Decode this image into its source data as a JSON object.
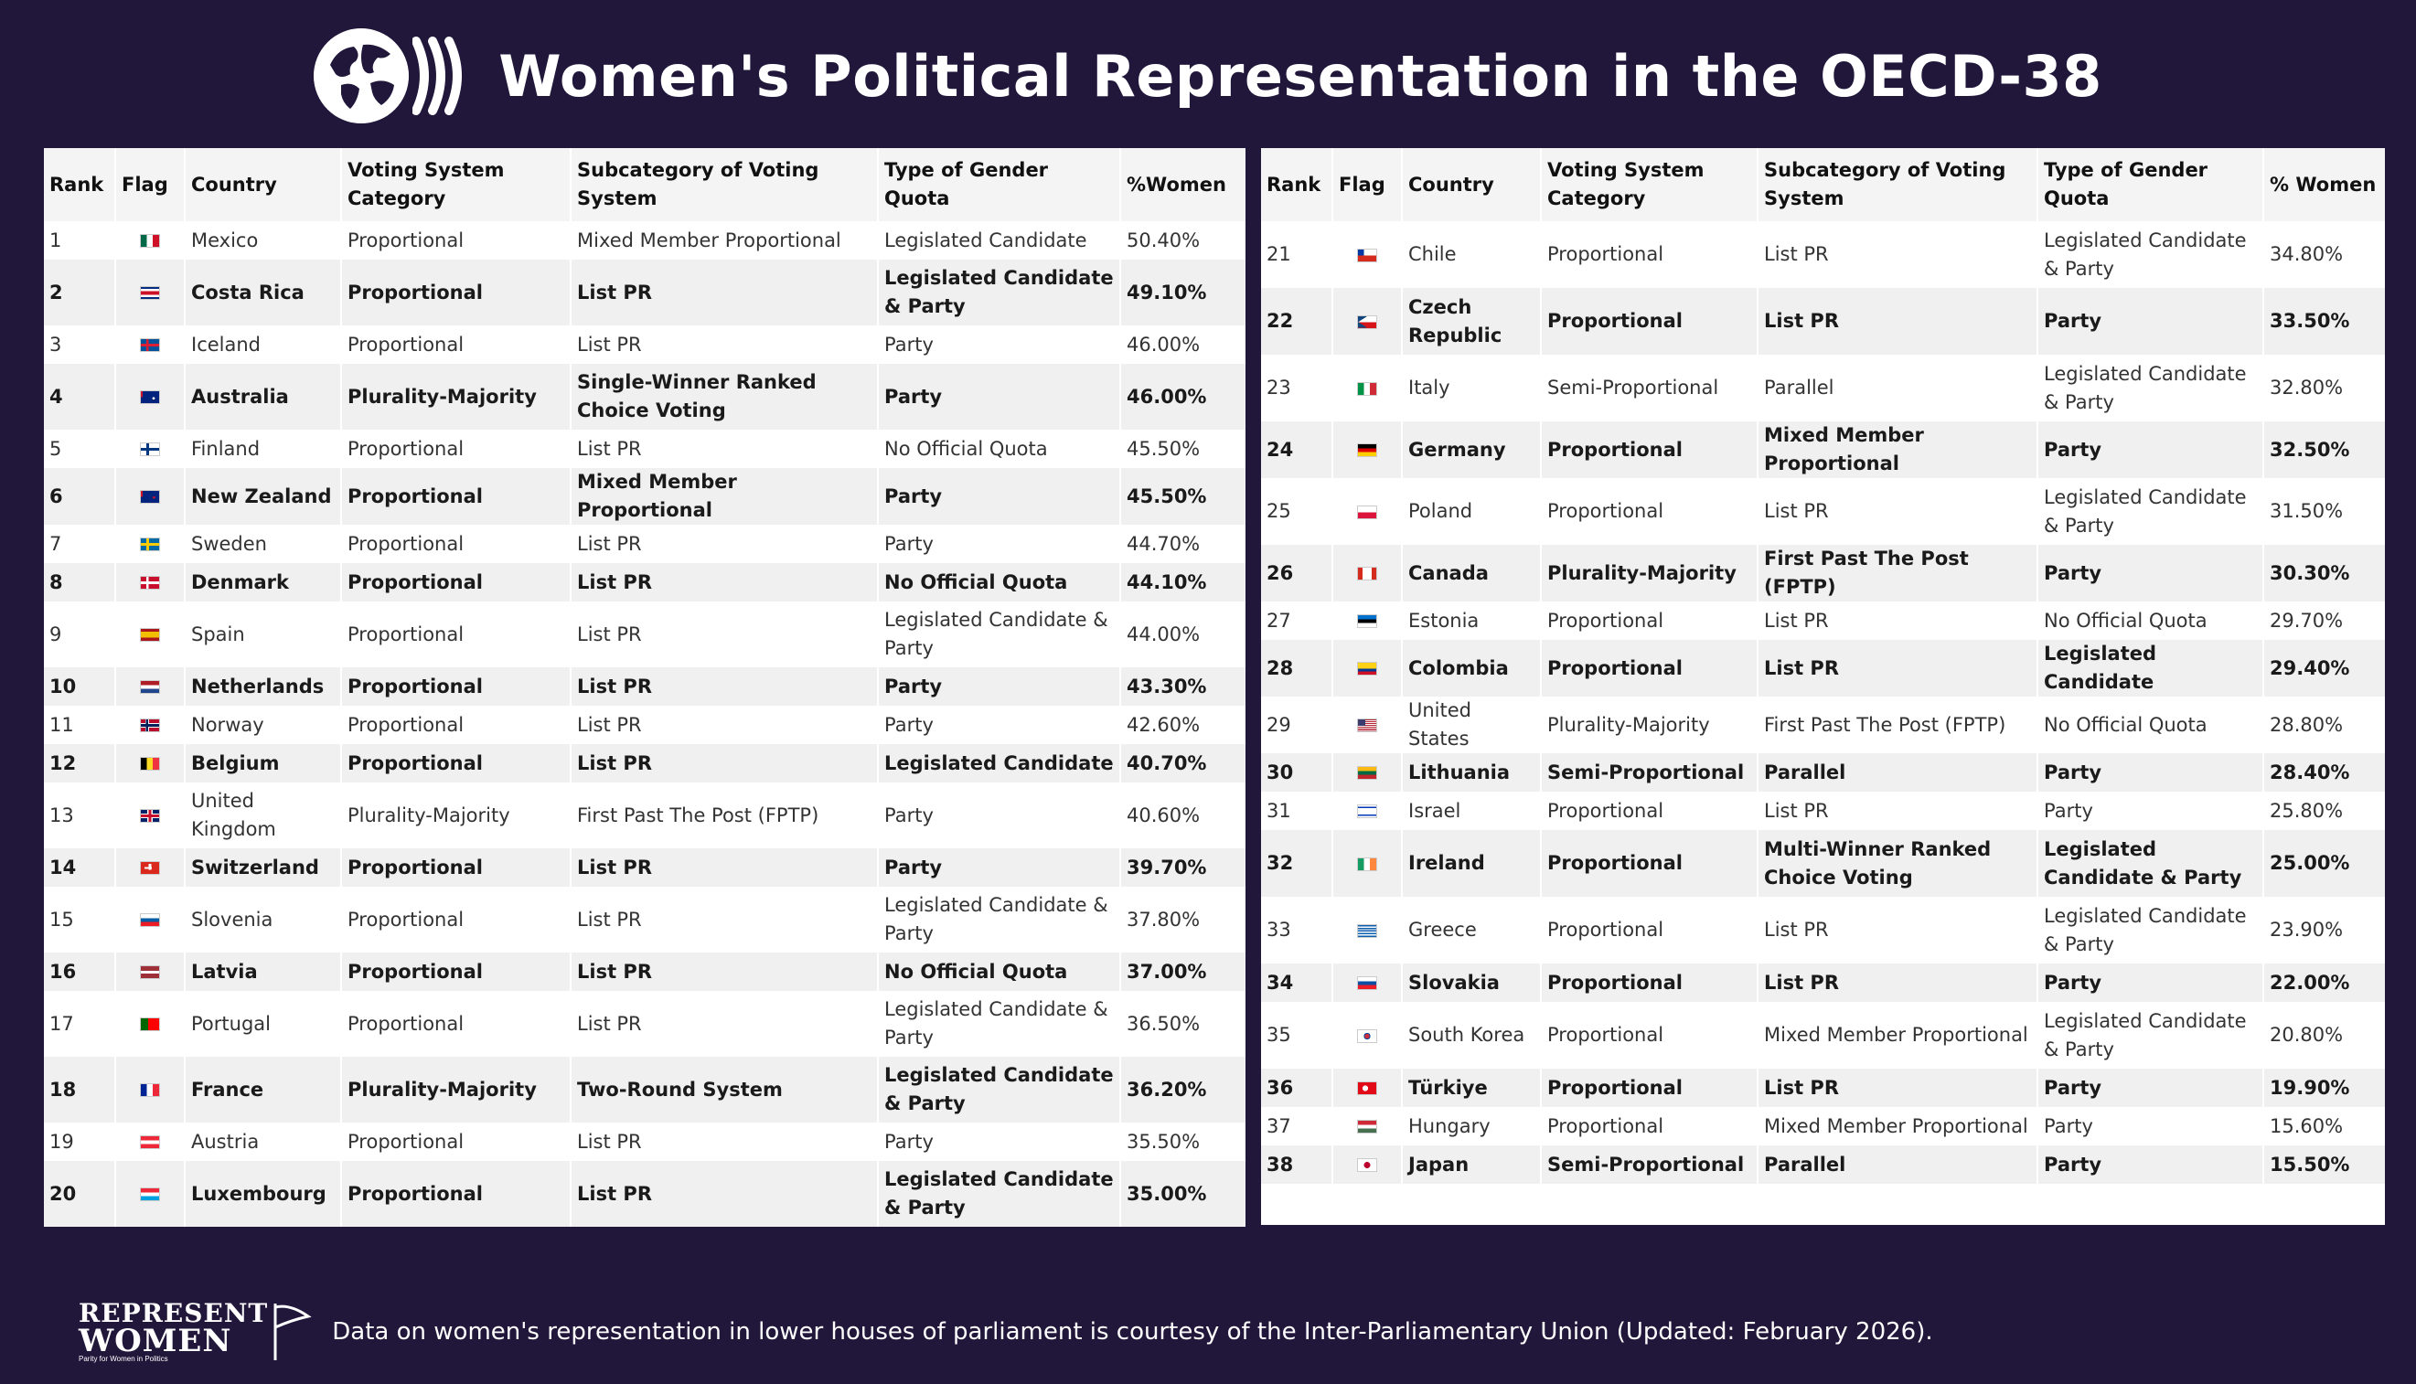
{
  "title": "Women's Political Representation in the OECD-38",
  "headers": {
    "left": [
      "Rank",
      "Flag",
      "Country",
      "Voting System Category",
      "Subcategory of Voting System",
      "Type of Gender Quota",
      "%Women"
    ],
    "right": [
      "Rank",
      "Flag",
      "Country",
      "Voting System Category",
      "Subcategory of Voting System",
      "Type of Gender Quota",
      "% Women"
    ]
  },
  "rows": [
    {
      "rank": "1",
      "flag": "mexico-flag-icon",
      "country": "Mexico",
      "category": "Proportional",
      "subcategory": "Mixed Member Proportional",
      "quota": "Legislated Candidate",
      "women": "50.40%"
    },
    {
      "rank": "2",
      "flag": "costa-rica-flag-icon",
      "country": "Costa Rica",
      "category": "Proportional",
      "subcategory": "List PR",
      "quota": "Legislated Candidate & Party",
      "women": "49.10%"
    },
    {
      "rank": "3",
      "flag": "iceland-flag-icon",
      "country": "Iceland",
      "category": "Proportional",
      "subcategory": "List PR",
      "quota": "Party",
      "women": "46.00%"
    },
    {
      "rank": "4",
      "flag": "australia-flag-icon",
      "country": "Australia",
      "category": "Plurality-Majority",
      "subcategory": "Single-Winner Ranked Choice Voting",
      "quota": "Party",
      "women": "46.00%"
    },
    {
      "rank": "5",
      "flag": "finland-flag-icon",
      "country": "Finland",
      "category": "Proportional",
      "subcategory": "List PR",
      "quota": "No Official Quota",
      "women": "45.50%"
    },
    {
      "rank": "6",
      "flag": "new-zealand-flag-icon",
      "country": "New Zealand",
      "category": "Proportional",
      "subcategory": "Mixed Member Proportional",
      "quota": "Party",
      "women": "45.50%"
    },
    {
      "rank": "7",
      "flag": "sweden-flag-icon",
      "country": "Sweden",
      "category": "Proportional",
      "subcategory": "List PR",
      "quota": "Party",
      "women": "44.70%"
    },
    {
      "rank": "8",
      "flag": "denmark-flag-icon",
      "country": "Denmark",
      "category": "Proportional",
      "subcategory": "List PR",
      "quota": "No Official Quota",
      "women": "44.10%"
    },
    {
      "rank": "9",
      "flag": "spain-flag-icon",
      "country": "Spain",
      "category": "Proportional",
      "subcategory": "List PR",
      "quota": "Legislated Candidate & Party",
      "women": "44.00%"
    },
    {
      "rank": "10",
      "flag": "netherlands-flag-icon",
      "country": "Netherlands",
      "category": "Proportional",
      "subcategory": "List PR",
      "quota": "Party",
      "women": "43.30%"
    },
    {
      "rank": "11",
      "flag": "norway-flag-icon",
      "country": "Norway",
      "category": "Proportional",
      "subcategory": "List PR",
      "quota": "Party",
      "women": "42.60%"
    },
    {
      "rank": "12",
      "flag": "belgium-flag-icon",
      "country": "Belgium",
      "category": "Proportional",
      "subcategory": "List PR",
      "quota": "Legislated Candidate",
      "women": "40.70%"
    },
    {
      "rank": "13",
      "flag": "united-kingdom-flag-icon",
      "country": "United Kingdom",
      "category": "Plurality-Majority",
      "subcategory": "First Past The Post (FPTP)",
      "quota": "Party",
      "women": "40.60%"
    },
    {
      "rank": "14",
      "flag": "switzerland-flag-icon",
      "country": "Switzerland",
      "category": "Proportional",
      "subcategory": "List PR",
      "quota": "Party",
      "women": "39.70%"
    },
    {
      "rank": "15",
      "flag": "slovenia-flag-icon",
      "country": "Slovenia",
      "category": "Proportional",
      "subcategory": "List PR",
      "quota": "Legislated Candidate & Party",
      "women": "37.80%"
    },
    {
      "rank": "16",
      "flag": "latvia-flag-icon",
      "country": "Latvia",
      "category": "Proportional",
      "subcategory": "List PR",
      "quota": "No Official Quota",
      "women": "37.00%"
    },
    {
      "rank": "17",
      "flag": "portugal-flag-icon",
      "country": "Portugal",
      "category": "Proportional",
      "subcategory": "List PR",
      "quota": "Legislated Candidate & Party",
      "women": "36.50%"
    },
    {
      "rank": "18",
      "flag": "france-flag-icon",
      "country": "France",
      "category": "Plurality-Majority",
      "subcategory": "Two-Round System",
      "quota": "Legislated Candidate & Party",
      "women": "36.20%"
    },
    {
      "rank": "19",
      "flag": "austria-flag-icon",
      "country": "Austria",
      "category": "Proportional",
      "subcategory": "List PR",
      "quota": "Party",
      "women": "35.50%"
    },
    {
      "rank": "20",
      "flag": "luxembourg-flag-icon",
      "country": "Luxembourg",
      "category": "Proportional",
      "subcategory": "List PR",
      "quota": "Legislated Candidate & Party",
      "women": "35.00%"
    },
    {
      "rank": "21",
      "flag": "chile-flag-icon",
      "country": "Chile",
      "category": "Proportional",
      "subcategory": "List PR",
      "quota": "Legislated Candidate & Party",
      "women": "34.80%"
    },
    {
      "rank": "22",
      "flag": "czech-republic-flag-icon",
      "country": "Czech Republic",
      "category": "Proportional",
      "subcategory": "List PR",
      "quota": "Party",
      "women": "33.50%"
    },
    {
      "rank": "23",
      "flag": "italy-flag-icon",
      "country": "Italy",
      "category": "Semi-Proportional",
      "subcategory": "Parallel",
      "quota": "Legislated Candidate & Party",
      "women": "32.80%"
    },
    {
      "rank": "24",
      "flag": "germany-flag-icon",
      "country": "Germany",
      "category": "Proportional",
      "subcategory": "Mixed Member Proportional",
      "quota": "Party",
      "women": "32.50%"
    },
    {
      "rank": "25",
      "flag": "poland-flag-icon",
      "country": "Poland",
      "category": "Proportional",
      "subcategory": "List PR",
      "quota": "Legislated Candidate & Party",
      "women": "31.50%"
    },
    {
      "rank": "26",
      "flag": "canada-flag-icon",
      "country": "Canada",
      "category": "Plurality-Majority",
      "subcategory": "First Past The Post (FPTP)",
      "quota": "Party",
      "women": "30.30%"
    },
    {
      "rank": "27",
      "flag": "estonia-flag-icon",
      "country": "Estonia",
      "category": "Proportional",
      "subcategory": "List PR",
      "quota": "No Official Quota",
      "women": "29.70%"
    },
    {
      "rank": "28",
      "flag": "colombia-flag-icon",
      "country": "Colombia",
      "category": "Proportional",
      "subcategory": "List PR",
      "quota": "Legislated Candidate",
      "women": "29.40%"
    },
    {
      "rank": "29",
      "flag": "united-states-flag-icon",
      "country": "United States",
      "category": "Plurality-Majority",
      "subcategory": "First Past The Post (FPTP)",
      "quota": "No Official Quota",
      "women": "28.80%"
    },
    {
      "rank": "30",
      "flag": "lithuania-flag-icon",
      "country": "Lithuania",
      "category": "Semi-Proportional",
      "subcategory": "Parallel",
      "quota": "Party",
      "women": "28.40%"
    },
    {
      "rank": "31",
      "flag": "israel-flag-icon",
      "country": "Israel",
      "category": "Proportional",
      "subcategory": "List PR",
      "quota": "Party",
      "women": "25.80%"
    },
    {
      "rank": "32",
      "flag": "ireland-flag-icon",
      "country": "Ireland",
      "category": "Proportional",
      "subcategory": "Multi-Winner Ranked Choice Voting",
      "quota": "Legislated Candidate & Party",
      "women": "25.00%"
    },
    {
      "rank": "33",
      "flag": "greece-flag-icon",
      "country": "Greece",
      "category": "Proportional",
      "subcategory": "List PR",
      "quota": "Legislated Candidate & Party",
      "women": "23.90%"
    },
    {
      "rank": "34",
      "flag": "slovakia-flag-icon",
      "country": "Slovakia",
      "category": "Proportional",
      "subcategory": "List PR",
      "quota": "Party",
      "women": "22.00%"
    },
    {
      "rank": "35",
      "flag": "south-korea-flag-icon",
      "country": "South Korea",
      "category": "Proportional",
      "subcategory": "Mixed Member Proportional",
      "quota": "Legislated Candidate & Party",
      "women": "20.80%"
    },
    {
      "rank": "36",
      "flag": "turkiye-flag-icon",
      "country": "Türkiye",
      "category": "Proportional",
      "subcategory": "List PR",
      "quota": "Party",
      "women": "19.90%"
    },
    {
      "rank": "37",
      "flag": "hungary-flag-icon",
      "country": "Hungary",
      "category": "Proportional",
      "subcategory": "Mixed Member Proportional",
      "quota": "Party",
      "women": "15.60%"
    },
    {
      "rank": "38",
      "flag": "japan-flag-icon",
      "country": "Japan",
      "category": "Semi-Proportional",
      "subcategory": "Parallel",
      "quota": "Party",
      "women": "15.50%"
    }
  ],
  "footer": {
    "brand_line1": "REPRESENT",
    "brand_line2": "WOMEN",
    "brand_tagline": "Parity for Women in Politics",
    "note": "Data on women's representation in lower houses of parliament is courtesy of the Inter-Parliamentary Union (Updated: February 2026)."
  }
}
